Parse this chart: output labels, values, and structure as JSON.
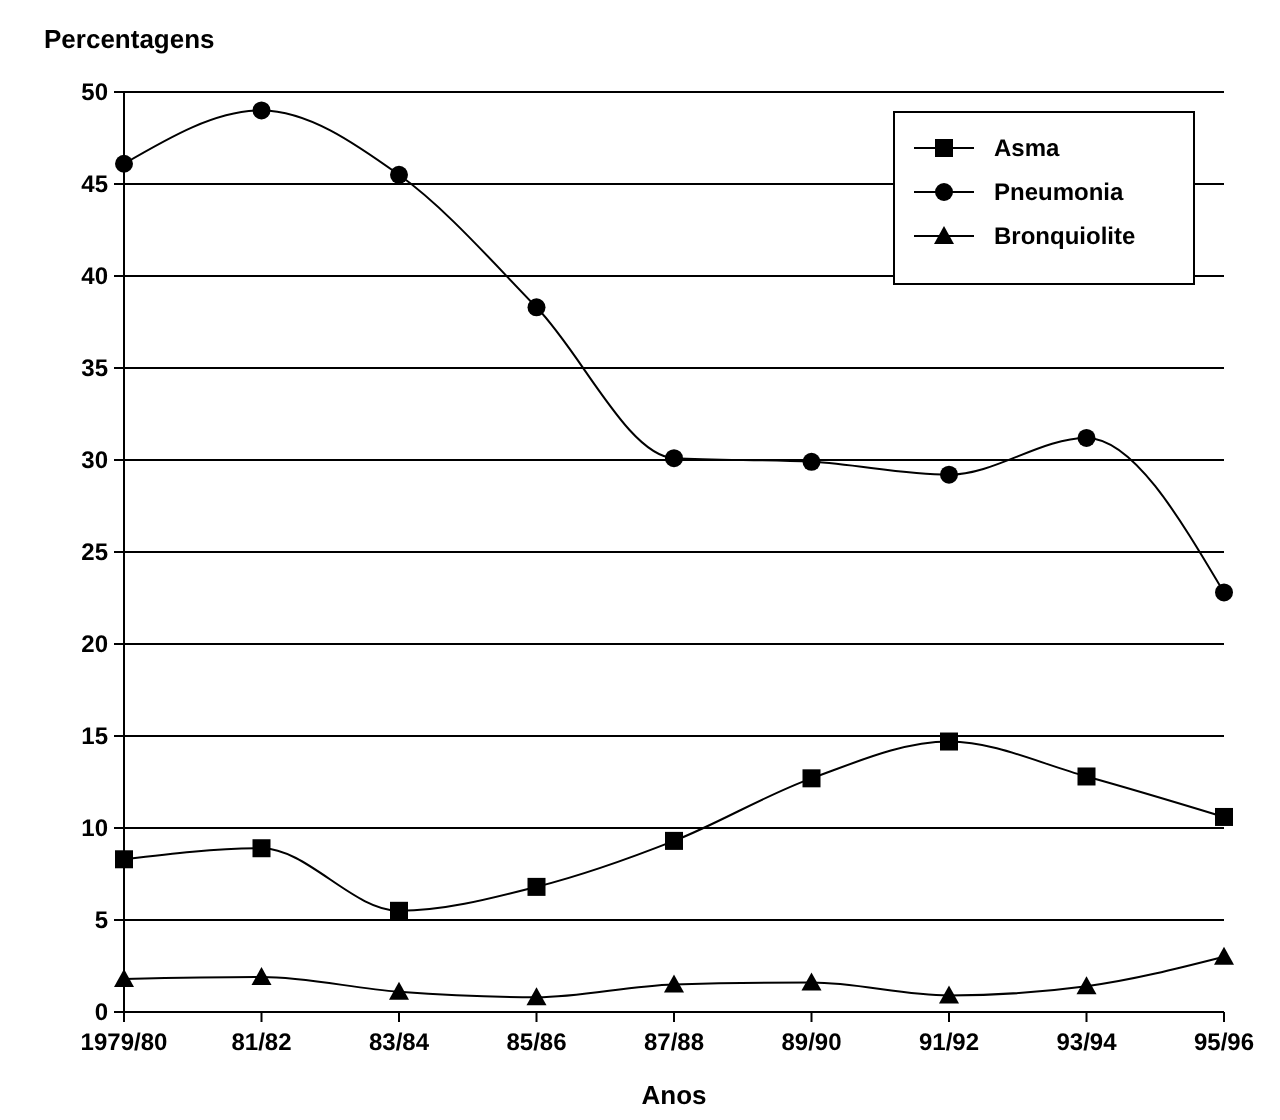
{
  "chart_data": {
    "type": "line",
    "ylabel": "Percentagens",
    "xlabel": "Anos",
    "categories": [
      "1979/80",
      "81/82",
      "83/84",
      "85/86",
      "87/88",
      "89/90",
      "91/92",
      "93/94",
      "95/96"
    ],
    "series": [
      {
        "name": "Asma",
        "color": "#000000",
        "marker": "square",
        "values": [
          8.3,
          8.9,
          5.5,
          6.8,
          9.3,
          12.7,
          14.7,
          12.8,
          10.6
        ]
      },
      {
        "name": "Pneumonia",
        "color": "#000000",
        "marker": "circle",
        "values": [
          46.1,
          49.0,
          45.5,
          38.3,
          30.1,
          29.9,
          29.2,
          31.2,
          22.8
        ]
      },
      {
        "name": "Bronquiolite",
        "color": "#000000",
        "marker": "triangle",
        "values": [
          1.8,
          1.9,
          1.1,
          0.8,
          1.5,
          1.6,
          0.9,
          1.4,
          3.0
        ]
      }
    ],
    "ylim": [
      0,
      50
    ],
    "yticks": [
      0,
      5,
      10,
      15,
      20,
      25,
      30,
      35,
      40,
      45,
      50
    ],
    "grid": "y",
    "legend": "top right",
    "line_style": "solid"
  }
}
